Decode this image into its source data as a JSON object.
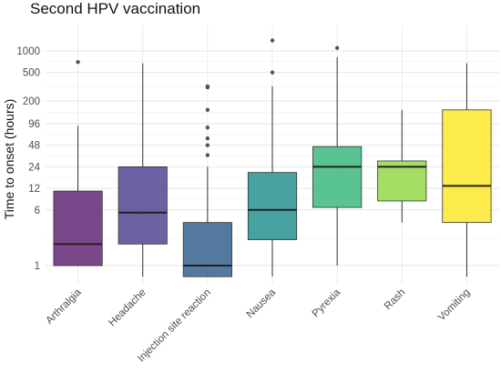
{
  "chart_data": {
    "type": "boxplot",
    "title": "Second HPV vaccination",
    "xlabel": "",
    "ylabel": "Time to onset (hours)",
    "y_scale": "log",
    "ylim": [
      0.55,
      1700
    ],
    "y_ticks": [
      1,
      6,
      12,
      24,
      48,
      96,
      200,
      500,
      1000
    ],
    "y_tick_labels": [
      "1",
      "6",
      "12",
      "24",
      "48",
      "96",
      "200",
      "500",
      "1000"
    ],
    "grid": true,
    "legend": "none",
    "categories": [
      "Arthralgia",
      "Headache",
      "Injection site reaction",
      "Nausea",
      "Pyrexia",
      "Rash",
      "Vomiting"
    ],
    "boxes": [
      {
        "category": "Arthralgia",
        "whisker_low": 1,
        "q1": 1,
        "median": 2,
        "q3": 11,
        "whisker_high": 90,
        "outliers": [
          700
        ],
        "color": "#5e1f71"
      },
      {
        "category": "Headache",
        "whisker_low": 0.7,
        "q1": 2,
        "median": 5.5,
        "q3": 24,
        "whisker_high": 670,
        "outliers": [],
        "color": "#4b3f8f"
      },
      {
        "category": "Injection site reaction",
        "whisker_low": 0.7,
        "q1": 0.7,
        "median": 1,
        "q3": 4,
        "whisker_high": 24,
        "outliers": [
          35,
          48,
          60,
          85,
          150,
          310,
          320
        ],
        "color": "#2e5c8a"
      },
      {
        "category": "Nausea",
        "whisker_low": 0.7,
        "q1": 2.3,
        "median": 6,
        "q3": 20,
        "whisker_high": 320,
        "outliers": [
          500,
          1400
        ],
        "color": "#1e8f8d"
      },
      {
        "category": "Pyrexia",
        "whisker_low": 1,
        "q1": 6.5,
        "median": 24,
        "q3": 46,
        "whisker_high": 820,
        "outliers": [
          1100
        ],
        "color": "#35b779"
      },
      {
        "category": "Rash",
        "whisker_low": 4,
        "q1": 8,
        "median": 24,
        "q3": 29,
        "whisker_high": 150,
        "outliers": [],
        "color": "#90d743"
      },
      {
        "category": "Vomiting",
        "whisker_low": 0.7,
        "q1": 4,
        "median": 13,
        "q3": 150,
        "whisker_high": 670,
        "outliers": [],
        "color": "#fde725"
      }
    ]
  }
}
